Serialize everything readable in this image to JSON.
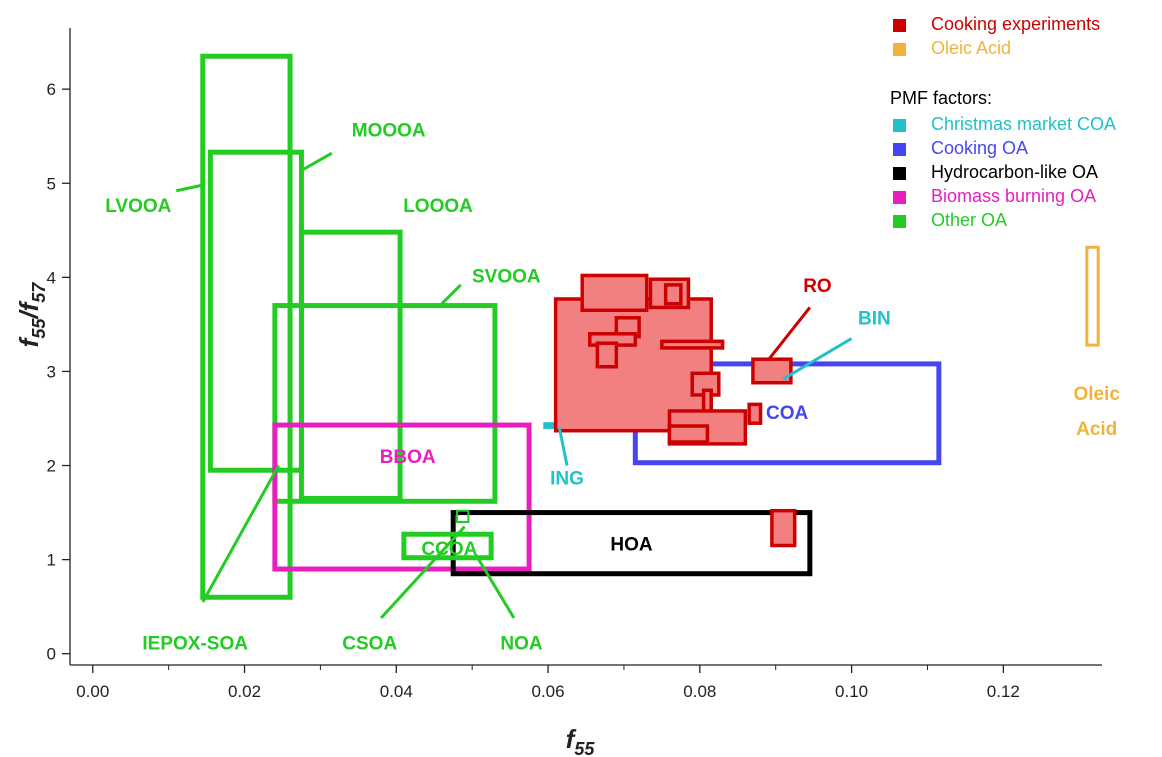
{
  "chart_data": {
    "type": "scatter",
    "x_label_main": "f",
    "x_label_sub": "55",
    "y_label": [
      "f",
      "55",
      "/f",
      "57"
    ],
    "xlim": [
      -0.003,
      0.133
    ],
    "ylim": [
      -0.12,
      6.65
    ],
    "x_ticks": [
      "0.00",
      "0.02",
      "0.04",
      "0.06",
      "0.08",
      "0.10",
      "0.12"
    ],
    "x_tick_values": [
      0,
      0.02,
      0.04,
      0.06,
      0.08,
      0.1,
      0.12
    ],
    "y_ticks": [
      "0",
      "1",
      "2",
      "3",
      "4",
      "5",
      "6"
    ],
    "y_tick_values": [
      0,
      1,
      2,
      3,
      4,
      5,
      6
    ],
    "grid": false,
    "colors": {
      "cooking": "#cc0000",
      "cooking_fill": "#f28080",
      "oleic": "#f0b43c",
      "christmas": "#1ec2c8",
      "cooking_oa": "#4646f0",
      "hoa": "#000000",
      "bboa": "#e81ec0",
      "other": "#22cc22"
    },
    "regions": [
      {
        "group": "other",
        "x0": 0.0145,
        "x1": 0.026,
        "y0": 0.6,
        "y1": 6.35
      },
      {
        "group": "other",
        "x0": 0.0155,
        "x1": 0.0275,
        "y0": 1.95,
        "y1": 5.33
      },
      {
        "group": "other",
        "x0": 0.0275,
        "x1": 0.0405,
        "y0": 1.65,
        "y1": 4.48
      },
      {
        "group": "other",
        "x0": 0.024,
        "x1": 0.053,
        "y0": 1.62,
        "y1": 3.7
      },
      {
        "group": "bboa",
        "x0": 0.024,
        "x1": 0.0575,
        "y0": 0.9,
        "y1": 2.43
      },
      {
        "group": "hoa",
        "x0": 0.0475,
        "x1": 0.0945,
        "y0": 0.85,
        "y1": 1.5
      },
      {
        "group": "cooking_oa",
        "x0": 0.0715,
        "x1": 0.1115,
        "y0": 2.03,
        "y1": 3.08
      },
      {
        "group": "other",
        "x0": 0.041,
        "x1": 0.0525,
        "y0": 1.02,
        "y1": 1.27
      },
      {
        "group": "other_small",
        "x0": 0.048,
        "x1": 0.0495,
        "y0": 1.4,
        "y1": 1.52
      },
      {
        "group": "christmas",
        "x0": 0.0595,
        "x1": 0.0615,
        "y0": 2.4,
        "y1": 2.45
      },
      {
        "group": "cooking",
        "x0": 0.061,
        "x1": 0.0815,
        "y0": 2.37,
        "y1": 3.77
      },
      {
        "group": "cooking",
        "x0": 0.0645,
        "x1": 0.073,
        "y0": 3.65,
        "y1": 4.02
      },
      {
        "group": "cooking",
        "x0": 0.0735,
        "x1": 0.0785,
        "y0": 3.68,
        "y1": 3.98
      },
      {
        "group": "cooking",
        "x0": 0.0755,
        "x1": 0.0775,
        "y0": 3.72,
        "y1": 3.92
      },
      {
        "group": "cooking",
        "x0": 0.069,
        "x1": 0.072,
        "y0": 3.37,
        "y1": 3.57
      },
      {
        "group": "cooking",
        "x0": 0.0655,
        "x1": 0.0715,
        "y0": 3.28,
        "y1": 3.4
      },
      {
        "group": "cooking",
        "x0": 0.0665,
        "x1": 0.069,
        "y0": 3.05,
        "y1": 3.3
      },
      {
        "group": "cooking",
        "x0": 0.075,
        "x1": 0.083,
        "y0": 3.25,
        "y1": 3.32
      },
      {
        "group": "cooking",
        "x0": 0.079,
        "x1": 0.0825,
        "y0": 2.75,
        "y1": 2.98
      },
      {
        "group": "cooking",
        "x0": 0.0805,
        "x1": 0.0815,
        "y0": 2.55,
        "y1": 2.8
      },
      {
        "group": "cooking",
        "x0": 0.076,
        "x1": 0.086,
        "y0": 2.23,
        "y1": 2.58
      },
      {
        "group": "cooking",
        "x0": 0.076,
        "x1": 0.081,
        "y0": 2.25,
        "y1": 2.42
      },
      {
        "group": "cooking",
        "x0": 0.0865,
        "x1": 0.088,
        "y0": 2.45,
        "y1": 2.65
      },
      {
        "group": "cooking",
        "x0": 0.087,
        "x1": 0.092,
        "y0": 2.88,
        "y1": 3.13
      },
      {
        "group": "cooking",
        "x0": 0.0895,
        "x1": 0.0925,
        "y0": 1.15,
        "y1": 1.52
      },
      {
        "group": "oleic",
        "x0": 0.131,
        "x1": 0.1325,
        "y0": 3.28,
        "y1": 4.32
      }
    ],
    "labels": [
      {
        "text": "LVOOA",
        "group": "other",
        "x": 0.006,
        "y": 4.75,
        "lx0": 0.011,
        "ly0": 4.92,
        "lx1": 0.0145,
        "ly1": 4.98
      },
      {
        "text": "MOOOA",
        "group": "other",
        "x": 0.039,
        "y": 5.55,
        "lx0": 0.0315,
        "ly0": 5.32,
        "lx1": 0.0278,
        "ly1": 5.15
      },
      {
        "text": "LOOOA",
        "group": "other",
        "x": 0.0455,
        "y": 4.75
      },
      {
        "text": "SVOOA",
        "group": "other",
        "x": 0.0545,
        "y": 4.0,
        "lx0": 0.0485,
        "ly0": 3.92,
        "lx1": 0.046,
        "ly1": 3.72
      },
      {
        "text": "BBOA",
        "group": "bboa",
        "x": 0.0415,
        "y": 2.08
      },
      {
        "text": "CCOA",
        "group": "other",
        "x": 0.047,
        "y": 1.1
      },
      {
        "text": "HOA",
        "group": "hoa",
        "x": 0.071,
        "y": 1.15
      },
      {
        "text": "COA",
        "group": "cooking_oa",
        "x": 0.0915,
        "y": 2.55
      },
      {
        "text": "ING",
        "group": "christmas",
        "x": 0.0625,
        "y": 1.85,
        "lx0": 0.0615,
        "ly0": 2.4,
        "lx1": 0.0625,
        "ly1": 2.0
      },
      {
        "text": "RO",
        "group": "cooking",
        "x": 0.0955,
        "y": 3.9,
        "lx0": 0.0945,
        "ly0": 3.68,
        "lx1": 0.089,
        "ly1": 3.12
      },
      {
        "text": "BIN",
        "group": "christmas",
        "x": 0.103,
        "y": 3.55,
        "lx0": 0.1,
        "ly0": 3.35,
        "lx1": 0.091,
        "ly1": 2.92
      },
      {
        "text": "Oleic",
        "group": "oleic",
        "x": 0.1323,
        "y": 2.75
      },
      {
        "text": "Acid",
        "group": "oleic",
        "x": 0.1323,
        "y": 2.38
      },
      {
        "text": "IEPOX-SOA",
        "group": "other",
        "x": 0.0135,
        "y": 0.1,
        "lx0": 0.0145,
        "ly0": 0.55,
        "lx1": 0.0245,
        "ly1": 2.0
      },
      {
        "text": "CSOA",
        "group": "other",
        "x": 0.0365,
        "y": 0.1,
        "lx0": 0.038,
        "ly0": 0.38,
        "lx1": 0.049,
        "ly1": 1.35
      },
      {
        "text": "NOA",
        "group": "other",
        "x": 0.0565,
        "y": 0.1,
        "lx0": 0.0555,
        "ly0": 0.38,
        "lx1": 0.0505,
        "ly1": 1.05
      }
    ],
    "legend": {
      "position": "top-right",
      "top_items": [
        {
          "label": "Cooking experiments",
          "group": "cooking"
        },
        {
          "label": "Oleic Acid",
          "group": "oleic"
        }
      ],
      "header": "PMF factors:",
      "pmf_items": [
        {
          "label": "Christmas market COA",
          "group": "christmas"
        },
        {
          "label": "Cooking OA",
          "group": "cooking_oa"
        },
        {
          "label": "Hydrocarbon-like OA",
          "group": "hoa"
        },
        {
          "label": "Biomass burning OA",
          "group": "bboa"
        },
        {
          "label": "Other OA",
          "group": "other"
        }
      ]
    }
  }
}
